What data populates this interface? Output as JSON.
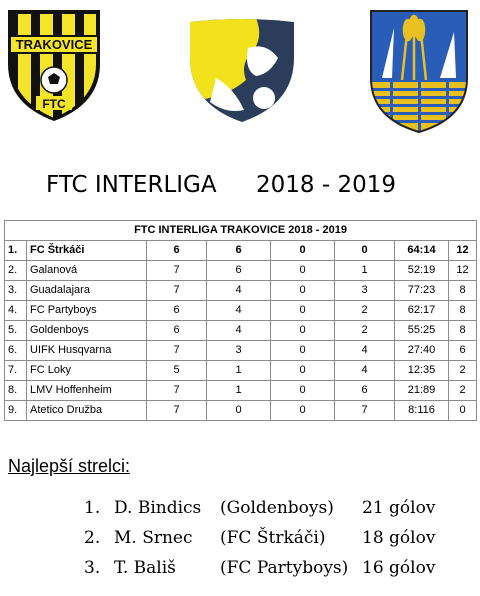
{
  "logos": {
    "ftc_text_top": "TRAKOVICE",
    "ftc_text_bottom": "FTC",
    "colors": {
      "ftc_yellow": "#f5e52a",
      "ftc_black": "#111111",
      "liga_yellow": "#f2e21c",
      "liga_navy": "#2b3d5a",
      "coat_blue": "#2a5db8",
      "coat_gold": "#e8c020"
    }
  },
  "title": {
    "name": "FTC INTERLIGA",
    "season": "2018 - 2019"
  },
  "table": {
    "caption": "FTC INTERLIGA TRAKOVICE 2018 - 2019",
    "rows": [
      [
        "1.",
        "FC Štrkáči",
        "6",
        "6",
        "0",
        "0",
        "64:14",
        "12"
      ],
      [
        "2.",
        "Galanová",
        "7",
        "6",
        "0",
        "1",
        "52:19",
        "12"
      ],
      [
        "3.",
        "Guadalajara",
        "7",
        "4",
        "0",
        "3",
        "77:23",
        "8"
      ],
      [
        "4.",
        "FC Partyboys",
        "6",
        "4",
        "0",
        "2",
        "62:17",
        "8"
      ],
      [
        "5.",
        "Goldenboys",
        "6",
        "4",
        "0",
        "2",
        "55:25",
        "8"
      ],
      [
        "6.",
        "UIFK Husqvarna",
        "7",
        "3",
        "0",
        "4",
        "27:40",
        "6"
      ],
      [
        "7.",
        "FC Loky",
        "5",
        "1",
        "0",
        "4",
        "12:35",
        "2"
      ],
      [
        "8.",
        "LMV Hoffenheim",
        "7",
        "1",
        "0",
        "6",
        "21:89",
        "2"
      ],
      [
        "9.",
        "Atetico Družba",
        "7",
        "0",
        "0",
        "7",
        "8:116",
        "0"
      ]
    ]
  },
  "scorers": {
    "heading": "Najlepší strelci:",
    "items": [
      {
        "rank": "1.",
        "name": "D. Bindics",
        "club": "(Goldenboys)",
        "goals": "21 gólov"
      },
      {
        "rank": "2.",
        "name": "M. Srnec",
        "club": "(FC Štrkáči)",
        "goals": "18 gólov"
      },
      {
        "rank": "3.",
        "name": "T. Bališ",
        "club": "(FC Partyboys)",
        "goals": "16 gólov"
      }
    ]
  }
}
